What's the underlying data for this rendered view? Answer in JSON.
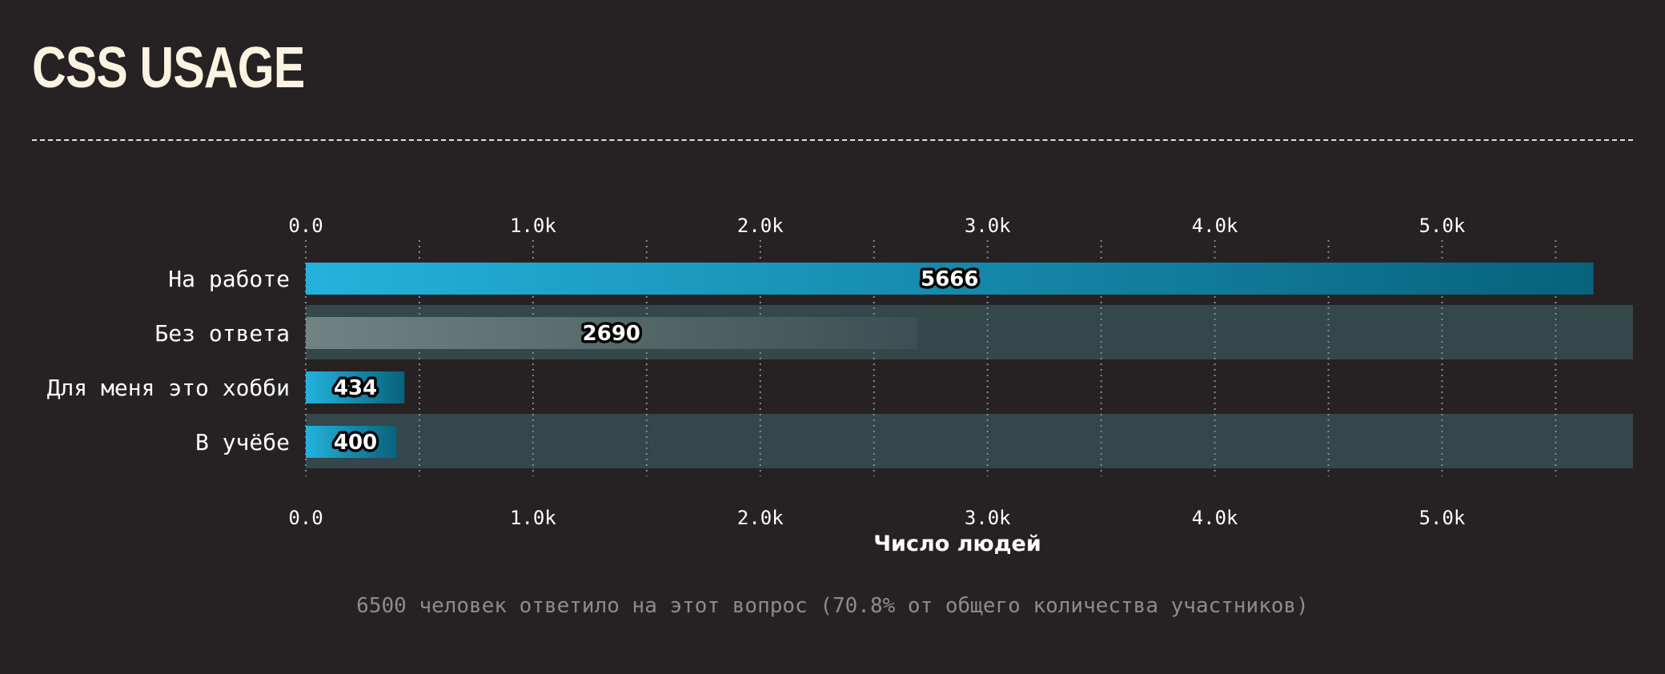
{
  "page": {
    "title": "CSS USAGE",
    "footer": "6500 человек ответило на этот вопрос (70.8% от общего количества участников)"
  },
  "chart_data": {
    "type": "bar",
    "orientation": "horizontal",
    "categories": [
      "На работе",
      "Без ответа",
      "Для меня это хобби",
      "В учёбе"
    ],
    "values": [
      5666,
      2690,
      434,
      400
    ],
    "xlabel": "Число людей",
    "ylabel": "",
    "xlim": [
      0,
      5840
    ],
    "xticks": [
      0,
      1000,
      2000,
      3000,
      4000,
      5000
    ],
    "xtick_labels": [
      "0.0",
      "1.0k",
      "2.0k",
      "3.0k",
      "4.0k",
      "5.0k"
    ],
    "tick_labels_top_and_bottom": true,
    "grid": "vertical dotted lines",
    "highlighted_rows": [
      1,
      3
    ],
    "colors": {
      "bar_start": "#24b2dc",
      "bar_end": "#08627c",
      "muted_bar_start": "#6f8482",
      "muted_bar_end": "#3c4f52",
      "row_band": "#34474a",
      "grid": "#8c8a8a",
      "background": "#262224"
    },
    "muted_categories": [
      "Без ответа"
    ]
  }
}
